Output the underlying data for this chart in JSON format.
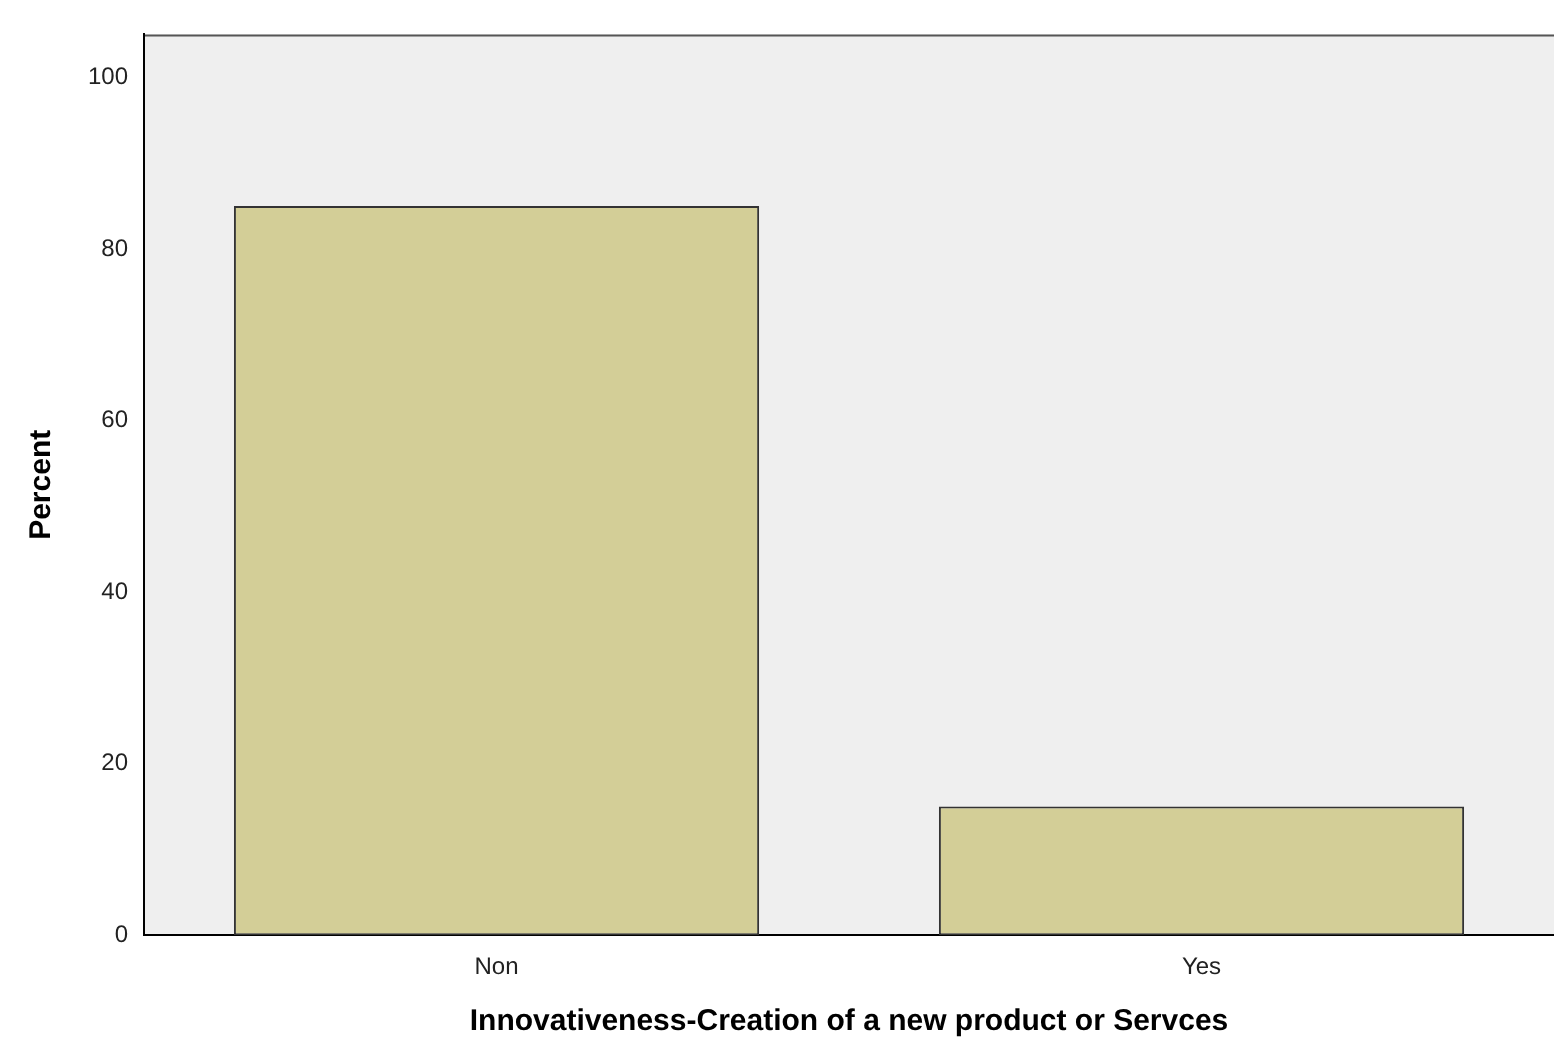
{
  "chart_data": {
    "type": "bar",
    "xlabel": "Innovativeness-Creation of a new product or Servces",
    "ylabel": "Percent",
    "categories": [
      "Non",
      "Yes"
    ],
    "values": [
      85,
      15
    ],
    "color": "#d3ce97",
    "ylim": [
      0,
      105
    ],
    "yticks": [
      0,
      20,
      40,
      60,
      80,
      100
    ],
    "grid": false,
    "legend": false
  }
}
